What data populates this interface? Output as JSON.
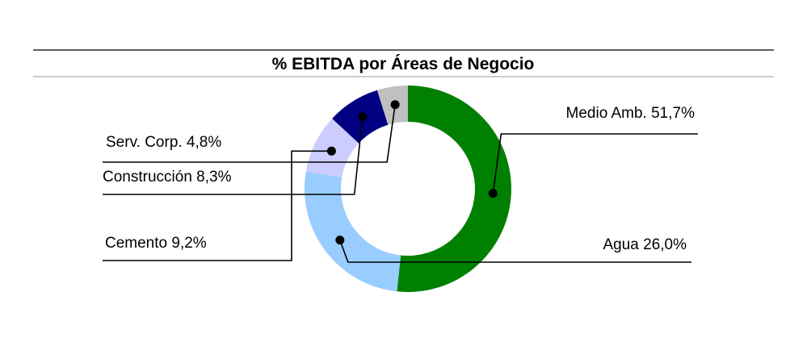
{
  "chart_data": {
    "type": "pie",
    "style": "donut",
    "title": "% EBITDA por Áreas de Negocio",
    "categories": [
      "Medio Amb.",
      "Agua",
      "Cemento",
      "Construcción",
      "Serv. Corp."
    ],
    "values": [
      51.7,
      26.0,
      9.2,
      8.3,
      4.8
    ],
    "labels": [
      "Medio Amb. 51,7%",
      "Agua 26,0%",
      "Cemento 9,2%",
      "Construcción 8,3%",
      "Serv. Corp. 4,8%"
    ],
    "colors": [
      "#008000",
      "#99ccff",
      "#ccccff",
      "#000080",
      "#c0c0c0"
    ],
    "legend": "none"
  }
}
